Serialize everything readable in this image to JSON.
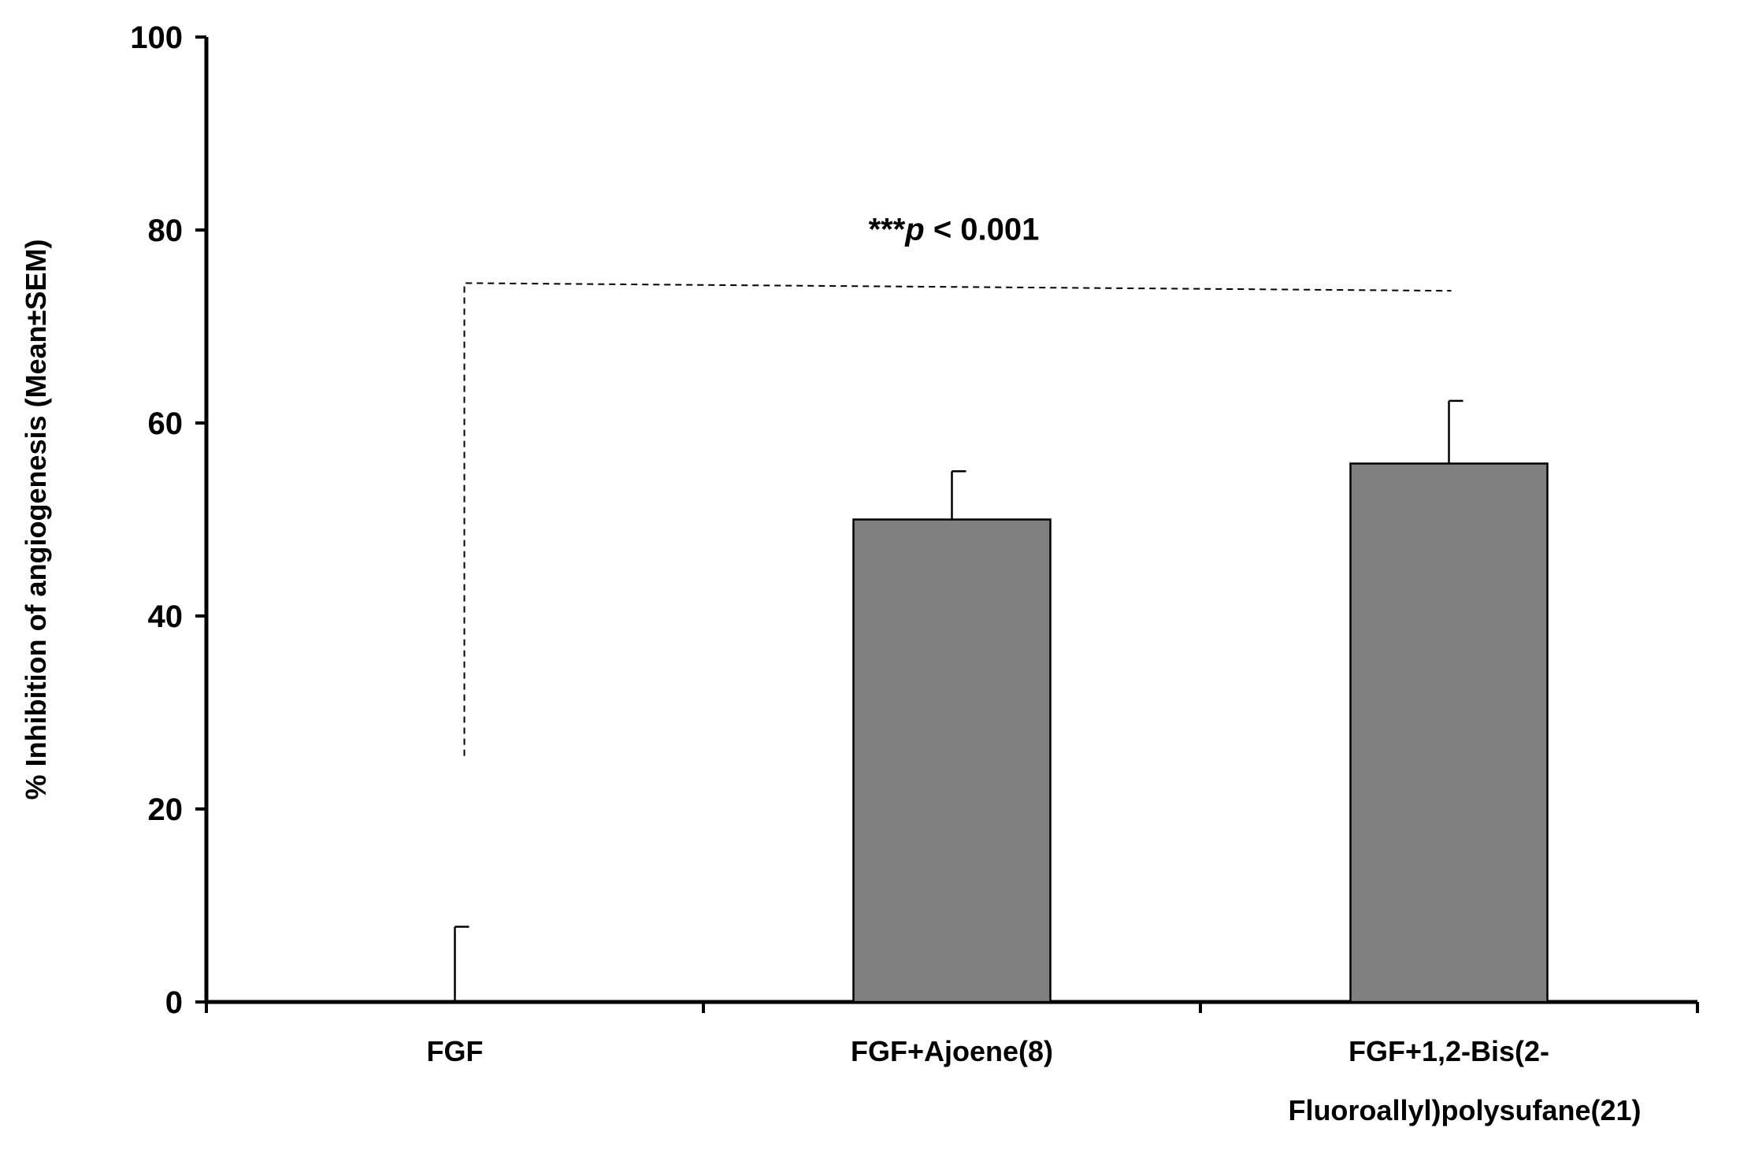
{
  "chart_data": {
    "type": "bar",
    "title": "",
    "xlabel": "",
    "ylabel": "% Inhibition of angiogenesis (Mean±SEM)",
    "ylim": [
      0,
      100
    ],
    "yticks": [
      "0",
      "20",
      "40",
      "60",
      "80",
      "100"
    ],
    "grid": false,
    "legend": "none",
    "categories": [
      {
        "lines": [
          "FGF"
        ]
      },
      {
        "lines": [
          "FGF+Ajoene(8)"
        ]
      },
      {
        "lines": [
          "FGF+1,2-Bis(2-",
          "Fluoroallyl)polysufane(21)"
        ]
      }
    ],
    "series": [
      {
        "values": [
          0,
          50,
          55.8
        ],
        "errors": [
          7.8,
          5.0,
          6.5
        ],
        "color": "#808080"
      }
    ],
    "annotation": {
      "stars": "***",
      "p_symbol": "p",
      "rest": " < 0.001",
      "from_category": 0,
      "to_category": 2,
      "bracket_y_left": 74.5,
      "bracket_y_right": 73.7,
      "left_drop_to": 25.5
    },
    "axis_color": "#000000",
    "bar_border_color": "#000000",
    "bracket_color": "#000000"
  }
}
